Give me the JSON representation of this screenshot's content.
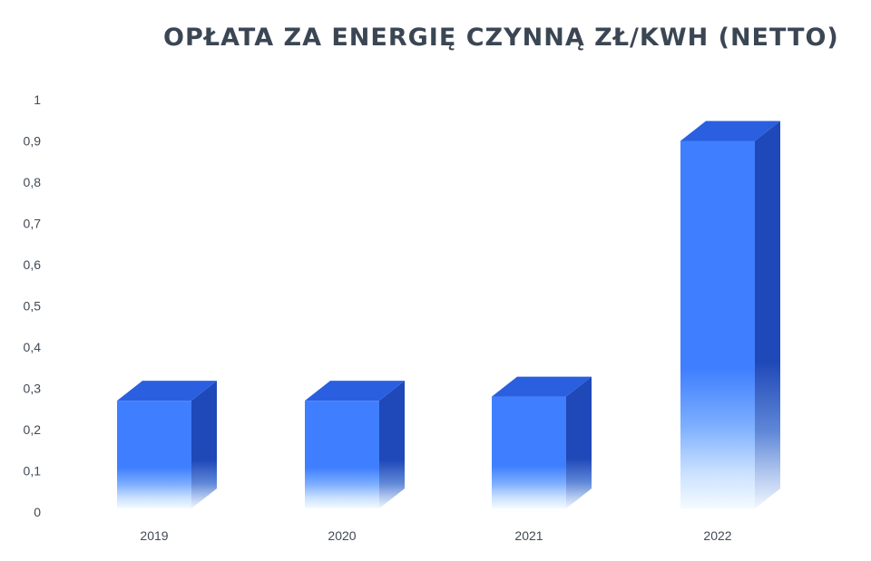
{
  "chart_data": {
    "type": "bar",
    "title": "OPŁATA ZA ENERGIĘ CZYNNĄ ZŁ/KWH (NETTO)",
    "xlabel": "",
    "ylabel": "",
    "categories": [
      "2019",
      "2020",
      "2021",
      "2022"
    ],
    "values": [
      0.27,
      0.27,
      0.28,
      0.9
    ],
    "ylim": [
      0,
      1
    ],
    "yticks": [
      0,
      0.1,
      0.2,
      0.3,
      0.4,
      0.5,
      0.6,
      0.7,
      0.8,
      0.9,
      1
    ],
    "ytick_labels": [
      "0",
      "0,1",
      "0,2",
      "0,3",
      "0,4",
      "0,5",
      "0,6",
      "0,7",
      "0,8",
      "0,9",
      "1"
    ],
    "grid": false,
    "legend": "none",
    "style": "3d-column",
    "colors": {
      "front": "#3f7fff",
      "top": "#2a5fe0",
      "side": "#1f48b8",
      "title": "#3b4654",
      "axis_text": "#404a56"
    }
  }
}
